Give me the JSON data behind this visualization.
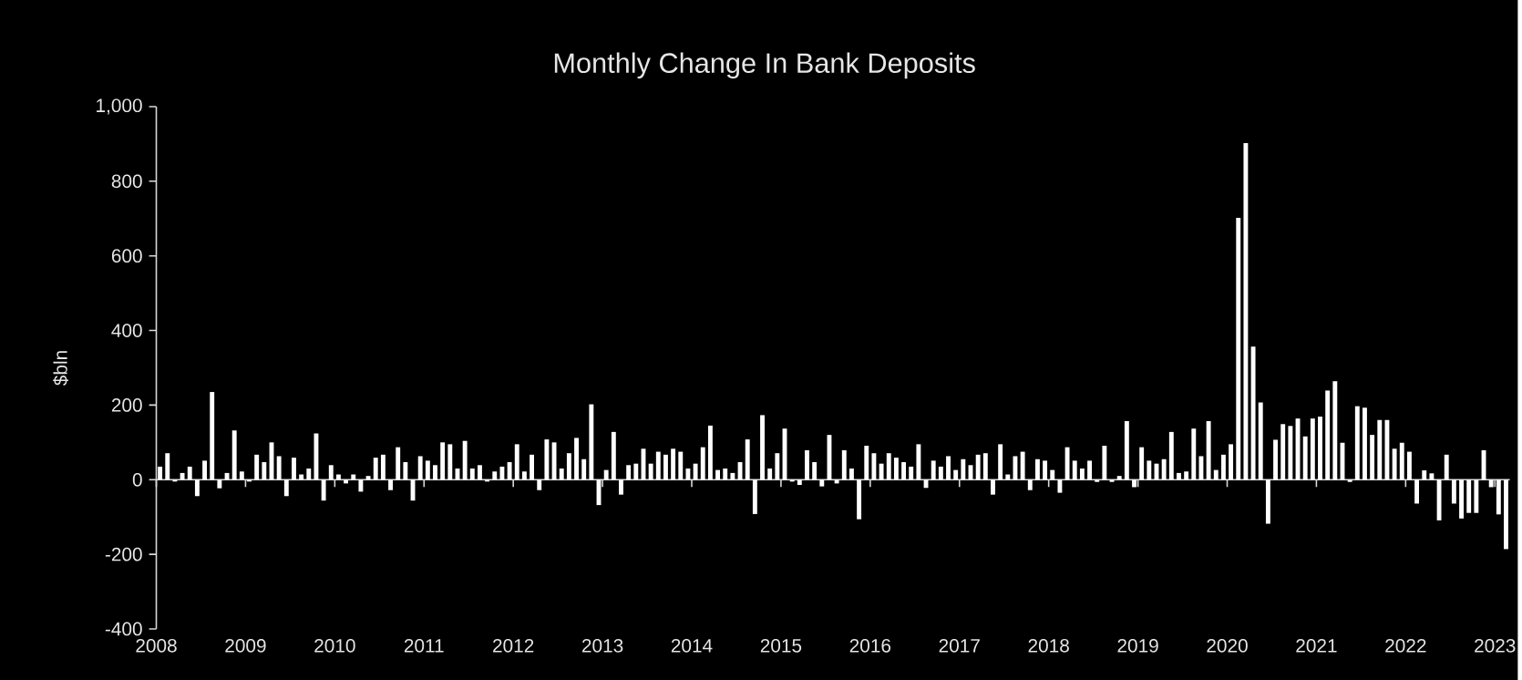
{
  "chart_data": {
    "type": "bar",
    "title": "Monthly Change In Bank Deposits",
    "ylabel": "$bln",
    "x": [
      "2008-01",
      "2008-02",
      "2008-03",
      "2008-04",
      "2008-05",
      "2008-06",
      "2008-07",
      "2008-08",
      "2008-09",
      "2008-10",
      "2008-11",
      "2008-12",
      "2009-01",
      "2009-02",
      "2009-03",
      "2009-04",
      "2009-05",
      "2009-06",
      "2009-07",
      "2009-08",
      "2009-09",
      "2009-10",
      "2009-11",
      "2009-12",
      "2010-01",
      "2010-02",
      "2010-03",
      "2010-04",
      "2010-05",
      "2010-06",
      "2010-07",
      "2010-08",
      "2010-09",
      "2010-10",
      "2010-11",
      "2010-12",
      "2011-01",
      "2011-02",
      "2011-03",
      "2011-04",
      "2011-05",
      "2011-06",
      "2011-07",
      "2011-08",
      "2011-09",
      "2011-10",
      "2011-11",
      "2011-12",
      "2012-01",
      "2012-02",
      "2012-03",
      "2012-04",
      "2012-05",
      "2012-06",
      "2012-07",
      "2012-08",
      "2012-09",
      "2012-10",
      "2012-11",
      "2012-12",
      "2013-01",
      "2013-02",
      "2013-03",
      "2013-04",
      "2013-05",
      "2013-06",
      "2013-07",
      "2013-08",
      "2013-09",
      "2013-10",
      "2013-11",
      "2013-12",
      "2014-01",
      "2014-02",
      "2014-03",
      "2014-04",
      "2014-05",
      "2014-06",
      "2014-07",
      "2014-08",
      "2014-09",
      "2014-10",
      "2014-11",
      "2014-12",
      "2015-01",
      "2015-02",
      "2015-03",
      "2015-04",
      "2015-05",
      "2015-06",
      "2015-07",
      "2015-08",
      "2015-09",
      "2015-10",
      "2015-11",
      "2015-12",
      "2016-01",
      "2016-02",
      "2016-03",
      "2016-04",
      "2016-05",
      "2016-06",
      "2016-07",
      "2016-08",
      "2016-09",
      "2016-10",
      "2016-11",
      "2016-12",
      "2017-01",
      "2017-02",
      "2017-03",
      "2017-04",
      "2017-05",
      "2017-06",
      "2017-07",
      "2017-08",
      "2017-09",
      "2017-10",
      "2017-11",
      "2017-12",
      "2018-01",
      "2018-02",
      "2018-03",
      "2018-04",
      "2018-05",
      "2018-06",
      "2018-07",
      "2018-08",
      "2018-09",
      "2018-10",
      "2018-11",
      "2018-12",
      "2019-01",
      "2019-02",
      "2019-03",
      "2019-04",
      "2019-05",
      "2019-06",
      "2019-07",
      "2019-08",
      "2019-09",
      "2019-10",
      "2019-11",
      "2019-12",
      "2020-01",
      "2020-02",
      "2020-03",
      "2020-04",
      "2020-05",
      "2020-06",
      "2020-07",
      "2020-08",
      "2020-09",
      "2020-10",
      "2020-11",
      "2020-12",
      "2021-01",
      "2021-02",
      "2021-03",
      "2021-04",
      "2021-05",
      "2021-06",
      "2021-07",
      "2021-08",
      "2021-09",
      "2021-10",
      "2021-11",
      "2021-12",
      "2022-01",
      "2022-02",
      "2022-03",
      "2022-04",
      "2022-05",
      "2022-06",
      "2022-07",
      "2022-08",
      "2022-09",
      "2022-10",
      "2022-11",
      "2022-12",
      "2023-01",
      "2023-02"
    ],
    "values": [
      35,
      71,
      -5,
      18,
      35,
      -44,
      51,
      235,
      -23,
      18,
      132,
      22,
      -5,
      67,
      47,
      100,
      63,
      -44,
      59,
      14,
      30,
      124,
      -56,
      39,
      14,
      -10,
      14,
      -32,
      10,
      59,
      67,
      -28,
      87,
      47,
      -56,
      63,
      51,
      39,
      100,
      95,
      30,
      104,
      30,
      39,
      -5,
      22,
      35,
      47,
      95,
      22,
      67,
      -28,
      108,
      100,
      30,
      71,
      112,
      55,
      202,
      -68,
      26,
      128,
      -40,
      39,
      43,
      83,
      43,
      75,
      67,
      83,
      75,
      30,
      43,
      87,
      145,
      26,
      30,
      18,
      47,
      108,
      -92,
      173,
      30,
      71,
      137,
      -5,
      -14,
      79,
      47,
      -18,
      120,
      -10,
      79,
      30,
      -106,
      91,
      71,
      43,
      71,
      59,
      47,
      35,
      95,
      -22,
      51,
      35,
      63,
      26,
      55,
      39,
      67,
      71,
      -40,
      95,
      14,
      63,
      75,
      -28,
      55,
      51,
      26,
      -35,
      87,
      51,
      30,
      51,
      -6,
      91,
      -6,
      10,
      157,
      -20,
      87,
      51,
      43,
      55,
      128,
      18,
      22,
      137,
      63,
      157,
      26,
      67,
      95,
      702,
      902,
      357,
      207,
      -118,
      107,
      149,
      144,
      164,
      116,
      164,
      169,
      239,
      264,
      99,
      -6,
      197,
      193,
      120,
      160,
      160,
      83,
      99,
      75,
      -64,
      25,
      17,
      -109,
      67,
      -64,
      -104,
      -89,
      -89,
      79,
      -20,
      -93,
      -186
    ],
    "color": "#ffffff",
    "xlim": [
      "2008",
      "2023-03-01"
    ],
    "xticks": [
      "2008",
      "2009",
      "2010",
      "2011",
      "2012",
      "2013",
      "2014",
      "2015",
      "2016",
      "2017",
      "2018",
      "2019",
      "2020",
      "2021",
      "2022",
      "2023"
    ],
    "ylim": [
      -400,
      1000
    ],
    "yticks": [
      -400,
      -200,
      0,
      200,
      400,
      600,
      800,
      {
        "value": 1000,
        "label": "1,000"
      }
    ]
  }
}
